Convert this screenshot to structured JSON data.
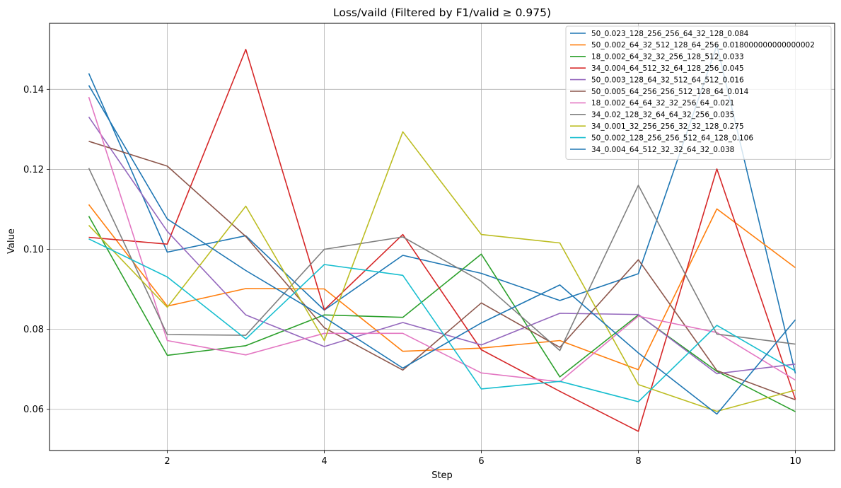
{
  "chart_data": {
    "type": "line",
    "title": "Loss/vaild (Filtered by F1/valid ≥ 0.975)",
    "xlabel": "Step",
    "ylabel": "Value",
    "xlim": [
      0.5,
      10.5
    ],
    "ylim": [
      0.0497,
      0.1565
    ],
    "xticks": [
      2,
      4,
      6,
      8,
      10
    ],
    "yticks": [
      0.06,
      0.08,
      0.1,
      0.12,
      0.14
    ],
    "ytick_labels": [
      "0.06",
      "0.08",
      "0.10",
      "0.12",
      "0.14"
    ],
    "grid": true,
    "legend_position": "top-right",
    "x": [
      1,
      2,
      3,
      4,
      5,
      6,
      7,
      8,
      9,
      10
    ],
    "series": [
      {
        "name": "50_0.023_128_256_256_64_32_128_0.084",
        "color": "#1f77b4",
        "values": [
          0.144,
          0.0993,
          0.1034,
          0.0848,
          0.0985,
          0.094,
          0.0872,
          0.0939,
          0.151,
          0.069
        ]
      },
      {
        "name": "50_0.002_64_32_512_128_64_256_0.018000000000000002",
        "color": "#ff7f0e",
        "values": [
          0.1112,
          0.0858,
          0.0902,
          0.0901,
          0.0745,
          0.0753,
          0.0772,
          0.0699,
          0.1101,
          0.0954
        ]
      },
      {
        "name": "18_0.002_64_32_32_256_128_512_0.033",
        "color": "#2ca02c",
        "values": [
          0.1083,
          0.0735,
          0.0759,
          0.0836,
          0.083,
          0.0988,
          0.0681,
          0.0836,
          0.0695,
          0.0594
        ]
      },
      {
        "name": "34_0.004_64_512_32_64_128_256_0.045",
        "color": "#d62728",
        "values": [
          0.103,
          0.1013,
          0.15,
          0.0849,
          0.1037,
          0.0749,
          0.0645,
          0.0545,
          0.1201,
          0.0625
        ]
      },
      {
        "name": "50_0.003_128_64_32_512_64_512_0.016",
        "color": "#9467bd",
        "values": [
          0.1331,
          0.1045,
          0.0836,
          0.0757,
          0.0817,
          0.0761,
          0.084,
          0.0837,
          0.0689,
          0.0713
        ]
      },
      {
        "name": "50_0.005_64_256_256_512_128_64_0.014",
        "color": "#8c564b",
        "values": [
          0.127,
          0.1208,
          0.1032,
          0.0804,
          0.0698,
          0.0866,
          0.0755,
          0.0974,
          0.0697,
          0.0624
        ]
      },
      {
        "name": "18_0.002_64_64_32_32_256_64_0.021",
        "color": "#e377c2",
        "values": [
          0.1381,
          0.0772,
          0.0736,
          0.079,
          0.079,
          0.0691,
          0.0669,
          0.0833,
          0.0792,
          0.0673
        ]
      },
      {
        "name": "34_0.02_128_32_64_64_32_256_0.035",
        "color": "#7f7f7f",
        "values": [
          0.1203,
          0.0787,
          0.0785,
          0.1,
          0.1031,
          0.092,
          0.0747,
          0.116,
          0.0788,
          0.0763
        ]
      },
      {
        "name": "34_0.001_32_256_256_32_32_128_0.275",
        "color": "#bcbd22",
        "values": [
          0.106,
          0.0855,
          0.1108,
          0.0772,
          0.1294,
          0.1037,
          0.1016,
          0.0662,
          0.0595,
          0.0648
        ]
      },
      {
        "name": "50_0.002_128_256_256_512_64_128_0.106",
        "color": "#17becf",
        "values": [
          0.1026,
          0.0931,
          0.0776,
          0.0962,
          0.0935,
          0.0651,
          0.067,
          0.0619,
          0.081,
          0.0696
        ]
      },
      {
        "name": "34_0.004_64_512_32_32_64_32_0.038",
        "color": "#1f77b4",
        "values": [
          0.141,
          0.1076,
          0.0947,
          0.083,
          0.0703,
          0.0816,
          0.0911,
          0.0741,
          0.0588,
          0.0824
        ]
      }
    ]
  }
}
